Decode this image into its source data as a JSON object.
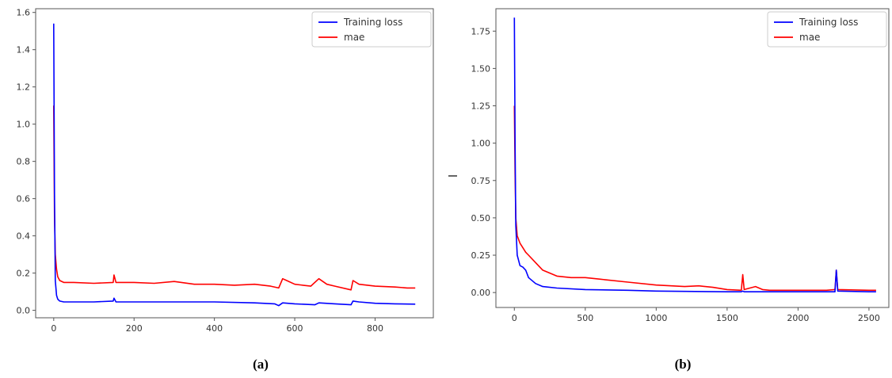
{
  "chart_data": [
    {
      "type": "line",
      "caption": "(a)",
      "xlim": [
        -45,
        945
      ],
      "ylim": [
        -0.04,
        1.62
      ],
      "xticks": [
        0,
        200,
        400,
        600,
        800
      ],
      "yticks": [
        0.0,
        0.2,
        0.4,
        0.6,
        0.8,
        1.0,
        1.2,
        1.4,
        1.6
      ],
      "ytick_decimals": 1,
      "legend": "top-right",
      "series": [
        {
          "name": "Training loss",
          "color": "#0000ff",
          "x": [
            0,
            2,
            4,
            7,
            10,
            15,
            25,
            50,
            100,
            148,
            150,
            155,
            200,
            300,
            400,
            500,
            550,
            560,
            570,
            600,
            650,
            660,
            700,
            740,
            745,
            760,
            800,
            850,
            900
          ],
          "y": [
            1.54,
            0.62,
            0.16,
            0.08,
            0.06,
            0.05,
            0.045,
            0.045,
            0.045,
            0.05,
            0.065,
            0.045,
            0.045,
            0.045,
            0.045,
            0.04,
            0.035,
            0.025,
            0.04,
            0.035,
            0.03,
            0.04,
            0.035,
            0.03,
            0.05,
            0.045,
            0.038,
            0.035,
            0.033
          ]
        },
        {
          "name": "mae",
          "color": "#ff0000",
          "x": [
            0,
            2,
            4,
            7,
            10,
            15,
            25,
            50,
            100,
            148,
            150,
            155,
            200,
            250,
            300,
            350,
            400,
            450,
            500,
            540,
            560,
            570,
            580,
            600,
            640,
            660,
            680,
            700,
            740,
            745,
            760,
            800,
            850,
            880,
            900
          ],
          "y": [
            1.1,
            0.5,
            0.3,
            0.22,
            0.18,
            0.16,
            0.15,
            0.15,
            0.145,
            0.15,
            0.19,
            0.15,
            0.15,
            0.145,
            0.155,
            0.14,
            0.14,
            0.135,
            0.14,
            0.13,
            0.12,
            0.17,
            0.16,
            0.14,
            0.13,
            0.17,
            0.14,
            0.13,
            0.11,
            0.16,
            0.14,
            0.13,
            0.125,
            0.12,
            0.12
          ]
        }
      ]
    },
    {
      "type": "line",
      "caption": "(b)",
      "xlim": [
        -130,
        2640
      ],
      "ylim": [
        -0.1,
        1.9
      ],
      "xticks": [
        0,
        500,
        1000,
        1500,
        2000,
        2500
      ],
      "yticks": [
        0.0,
        0.25,
        0.5,
        0.75,
        1.0,
        1.25,
        1.5,
        1.75
      ],
      "ytick_decimals": 2,
      "legend": "top-right",
      "series": [
        {
          "name": "Training loss",
          "color": "#0000ff",
          "x": [
            0,
            5,
            10,
            20,
            40,
            60,
            80,
            100,
            150,
            200,
            300,
            500,
            800,
            1000,
            1500,
            1600,
            1610,
            1620,
            2000,
            2260,
            2270,
            2280,
            2500,
            2550
          ],
          "y": [
            1.84,
            1.0,
            0.45,
            0.25,
            0.18,
            0.17,
            0.15,
            0.1,
            0.06,
            0.04,
            0.03,
            0.02,
            0.015,
            0.01,
            0.005,
            0.005,
            0.01,
            0.005,
            0.005,
            0.005,
            0.15,
            0.01,
            0.005,
            0.005
          ]
        },
        {
          "name": "mae",
          "color": "#ff0000",
          "x": [
            0,
            5,
            10,
            20,
            40,
            60,
            80,
            100,
            150,
            200,
            300,
            400,
            500,
            600,
            800,
            1000,
            1200,
            1300,
            1400,
            1500,
            1600,
            1610,
            1620,
            1700,
            1750,
            1800,
            2000,
            2200,
            2260,
            2270,
            2280,
            2500,
            2550
          ],
          "y": [
            1.25,
            0.8,
            0.5,
            0.38,
            0.33,
            0.3,
            0.27,
            0.25,
            0.2,
            0.15,
            0.11,
            0.1,
            0.1,
            0.09,
            0.07,
            0.05,
            0.04,
            0.045,
            0.035,
            0.02,
            0.015,
            0.12,
            0.02,
            0.04,
            0.02,
            0.015,
            0.015,
            0.015,
            0.02,
            0.15,
            0.02,
            0.015,
            0.015
          ]
        }
      ]
    }
  ]
}
